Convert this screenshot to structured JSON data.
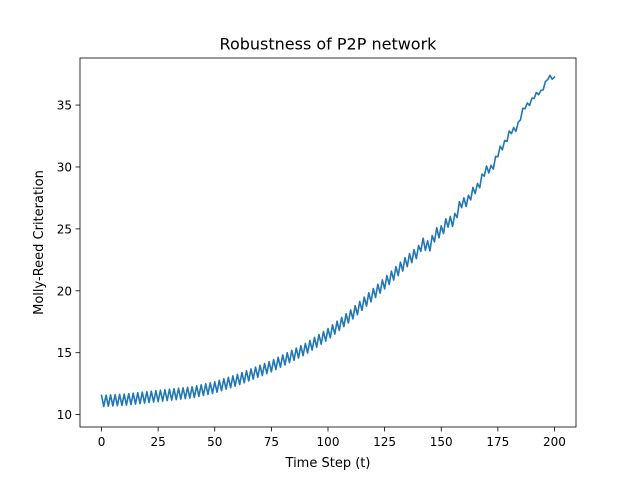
{
  "chart_data": {
    "type": "line",
    "title": "Robustness of P2P network",
    "xlabel": "Time Step (t)",
    "ylabel": "Molly-Reed Criteration",
    "xlim": [
      -9.5,
      209.5
    ],
    "ylim": [
      9.0,
      38.8
    ],
    "xticks": [
      0,
      25,
      50,
      75,
      100,
      125,
      150,
      175,
      200
    ],
    "yticks": [
      10,
      15,
      20,
      25,
      30,
      35
    ],
    "grid": false,
    "legend": "none",
    "series": [
      {
        "color": "#1f77b4",
        "trend": {
          "x": [
            0,
            10,
            25,
            40,
            50,
            60,
            75,
            90,
            100,
            110,
            125,
            135,
            150,
            160,
            170,
            180,
            190,
            200
          ],
          "y": [
            11.1,
            11.2,
            11.5,
            11.8,
            12.2,
            12.8,
            13.9,
            15.3,
            16.5,
            18.0,
            20.6,
            22.4,
            24.8,
            27.0,
            29.5,
            32.5,
            35.5,
            37.4
          ]
        },
        "oscillation": {
          "period": 2,
          "amplitude": 0.45,
          "fade_end": 150
        }
      }
    ]
  }
}
